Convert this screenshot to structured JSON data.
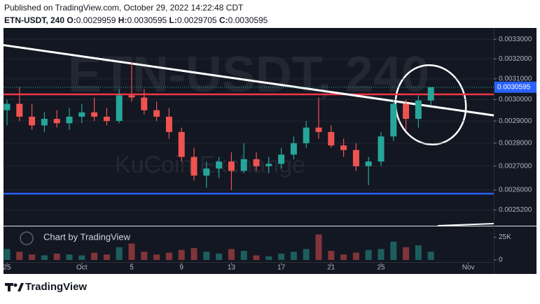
{
  "header": {
    "published": "Published on TradingView.com, October 29, 2022 14:22:48 CDT",
    "symbol": "ETN-USDT, 240",
    "ohlc_labels": [
      "O:",
      "H:",
      "L:",
      "C:"
    ]
  },
  "chart_data": {
    "type": "candlestick",
    "watermark_exchange": "KuCoin Exchange",
    "attribution": "Chart by TradingView",
    "brand": "TradingView",
    "categories": [
      "25",
      null,
      null,
      null,
      null,
      null,
      "Oct",
      null,
      null,
      null,
      "5",
      null,
      null,
      null,
      "9",
      null,
      null,
      null,
      "13",
      null,
      null,
      null,
      "17",
      null,
      null,
      null,
      "21",
      null,
      null,
      null,
      "25",
      null,
      null,
      null,
      null,
      null,
      null,
      "Nov"
    ],
    "open": [
      0.00295,
      0.00298,
      0.00292,
      0.00288,
      0.00291,
      0.00289,
      0.00292,
      0.00294,
      0.00292,
      0.0029,
      0.00302,
      0.00301,
      0.00295,
      0.00292,
      0.00285,
      0.00274,
      0.00266,
      0.00269,
      0.00272,
      0.00268,
      0.00273,
      0.0027,
      0.00271,
      0.00275,
      0.0028,
      0.00287,
      0.00285,
      0.00279,
      0.00277,
      0.0027,
      0.00272,
      0.00283,
      0.00298,
      0.00291,
      0.0029959,
      null,
      null,
      null
    ],
    "high": [
      0.003,
      0.00306,
      0.00298,
      0.00294,
      0.00295,
      0.00296,
      0.00298,
      0.00301,
      0.00296,
      0.00305,
      0.00318,
      0.00305,
      0.00299,
      0.00296,
      0.00287,
      0.00278,
      0.00272,
      0.00274,
      0.00276,
      0.0028,
      0.00276,
      0.00274,
      0.00278,
      0.00283,
      0.0029,
      0.00301,
      0.00288,
      0.00282,
      0.0028,
      0.00274,
      0.00285,
      0.003,
      0.003,
      0.00302,
      0.0030595,
      null,
      null,
      null
    ],
    "low": [
      0.00288,
      0.0029,
      0.00286,
      0.00285,
      0.00287,
      0.00286,
      0.00289,
      0.0029,
      0.00288,
      0.00289,
      0.00299,
      0.00293,
      0.0029,
      0.00282,
      0.00272,
      0.00264,
      0.00261,
      0.00265,
      0.0026,
      0.00267,
      0.00268,
      0.00267,
      0.00269,
      0.00273,
      0.00278,
      0.00282,
      0.00278,
      0.00274,
      0.00268,
      0.00262,
      0.0027,
      0.00281,
      0.00286,
      0.00287,
      0.0029705,
      null,
      null,
      null
    ],
    "close": [
      0.00298,
      0.00292,
      0.00288,
      0.00291,
      0.00289,
      0.00292,
      0.00294,
      0.00292,
      0.0029,
      0.00302,
      0.00301,
      0.00295,
      0.00292,
      0.00285,
      0.00274,
      0.00266,
      0.00269,
      0.00272,
      0.00268,
      0.00273,
      0.0027,
      0.00271,
      0.00275,
      0.0028,
      0.00287,
      0.00285,
      0.00279,
      0.00277,
      0.0027,
      0.00272,
      0.00283,
      0.00298,
      0.00291,
      0.002996,
      0.0030595,
      null,
      null,
      null
    ],
    "volume": [
      12000,
      9000,
      6000,
      5000,
      7000,
      6000,
      5000,
      8000,
      6000,
      14000,
      18000,
      9000,
      6000,
      8000,
      11000,
      13000,
      9000,
      7000,
      12000,
      10000,
      5000,
      4000,
      7000,
      9000,
      12000,
      28000,
      10000,
      6000,
      8000,
      11000,
      12000,
      20000,
      14000,
      16000,
      9000,
      null,
      null,
      null
    ],
    "up_color": "#26a69a",
    "down_color": "#ef5350",
    "log_scale": true,
    "ylim": [
      0.00246,
      0.00336
    ],
    "yticks": [
      {
        "value": 0.0033,
        "label": "0.0033000"
      },
      {
        "value": 0.0032,
        "label": "0.0032000"
      },
      {
        "value": 0.0031,
        "label": "0.0031000"
      },
      {
        "value": 0.003,
        "label": "0.0030000"
      },
      {
        "value": 0.0029,
        "label": "0.0029000"
      },
      {
        "value": 0.0028,
        "label": "0.0028000"
      },
      {
        "value": 0.0027,
        "label": "0.0027000"
      },
      {
        "value": 0.0026,
        "label": "0.0026000"
      },
      {
        "value": 0.00252,
        "label": "0.0025200"
      }
    ],
    "y2lim": [
      0,
      36000
    ],
    "y2ticks": [
      {
        "value": 25000,
        "label": "25K"
      },
      0
    ],
    "levels": [
      {
        "value": 0.003025,
        "color": "#f23645"
      },
      {
        "value": 0.002585,
        "color": "#2962ff"
      }
    ],
    "trendline": {
      "values": [
        0.00327,
        0.002926
      ],
      "color": "#ffffff"
    }
  }
}
